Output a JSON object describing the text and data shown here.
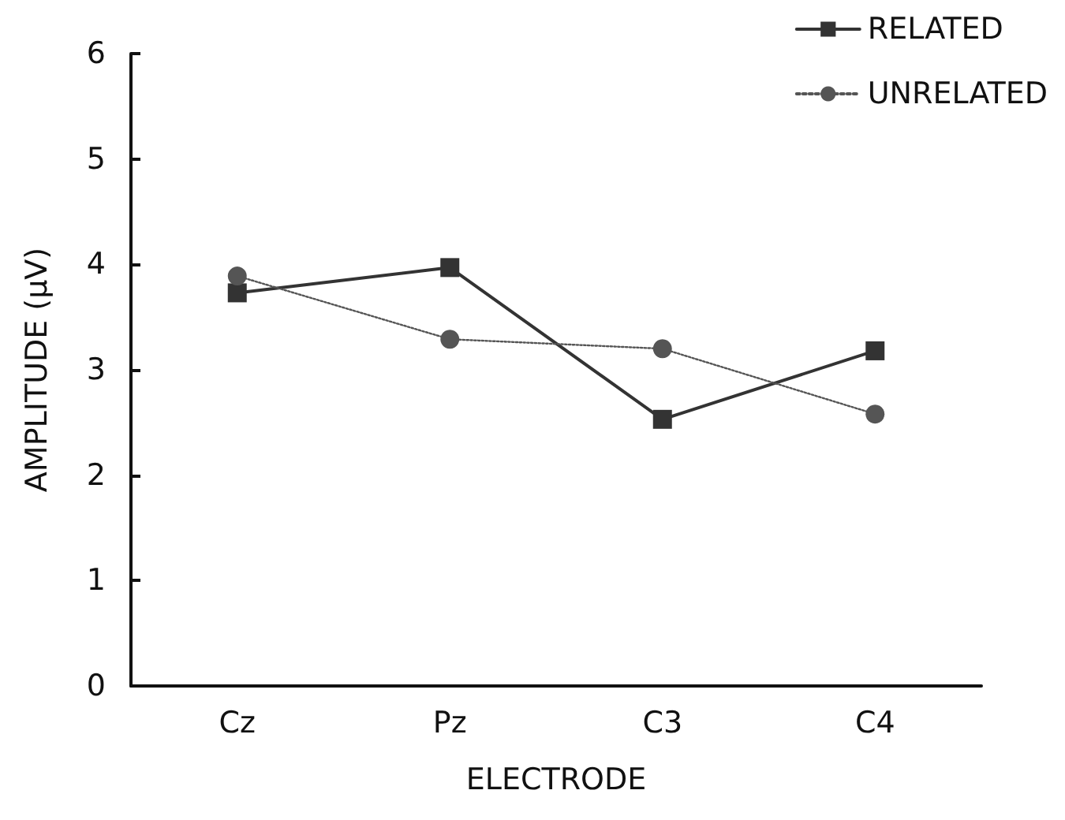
{
  "chart_data": {
    "type": "line",
    "xlabel": "ELECTRODE",
    "ylabel": "AMPLITUDE (μV)",
    "categories": [
      "Cz",
      "Pz",
      "C3",
      "C4"
    ],
    "series": [
      {
        "name": "RELATED",
        "color": "#333333",
        "marker": "square",
        "line_style": "solid",
        "values": [
          3.73,
          3.97,
          2.53,
          3.18
        ]
      },
      {
        "name": "UNRELATED",
        "color": "#555555",
        "marker": "circle",
        "line_style": "dotted",
        "values": [
          3.89,
          3.29,
          3.2,
          2.58
        ]
      }
    ],
    "ylim": [
      0,
      6
    ],
    "yticks": [
      0,
      1,
      2,
      3,
      4,
      5,
      6
    ],
    "grid": false,
    "legend": "top right"
  }
}
